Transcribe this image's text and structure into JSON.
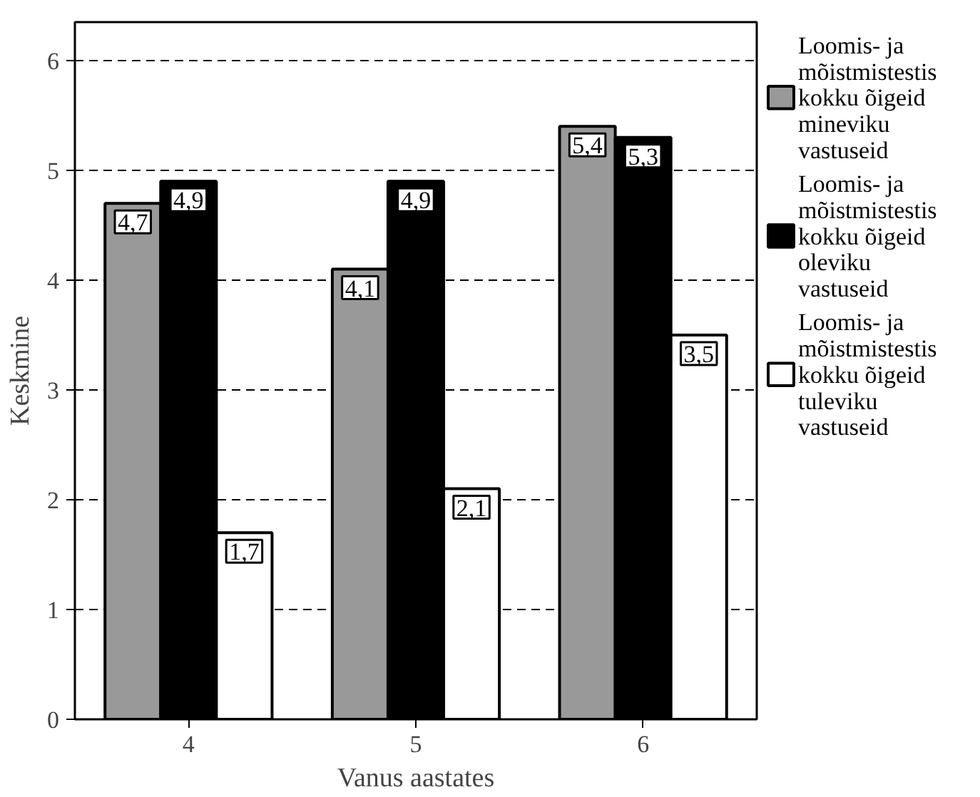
{
  "chart_data": {
    "type": "bar",
    "xlabel": "Vanus aastates",
    "ylabel": "Keskmine",
    "categories": [
      "4",
      "5",
      "6"
    ],
    "series": [
      {
        "name": "Loomis- ja mõistmistestis kokku õigeid mineviku vastuseid",
        "color": "#999999",
        "values": [
          4.7,
          4.1,
          5.4
        ],
        "value_labels": [
          "4,7",
          "4,1",
          "5,4"
        ]
      },
      {
        "name": "Loomis- ja mõistmistestis kokku õigeid oleviku vastuseid",
        "color": "#000000",
        "values": [
          4.9,
          4.9,
          5.3
        ],
        "value_labels": [
          "4,9",
          "4,9",
          "5,3"
        ]
      },
      {
        "name": "Loomis- ja mõistmistestis kokku õigeid tuleviku vastuseid",
        "color": "#ffffff",
        "values": [
          1.7,
          2.1,
          3.5
        ],
        "value_labels": [
          "1,7",
          "2,1",
          "3,5"
        ]
      }
    ],
    "ylim": [
      0,
      6.35
    ],
    "yticks": [
      0,
      1,
      2,
      3,
      4,
      5,
      6
    ],
    "grid": "y",
    "legend": "right"
  }
}
